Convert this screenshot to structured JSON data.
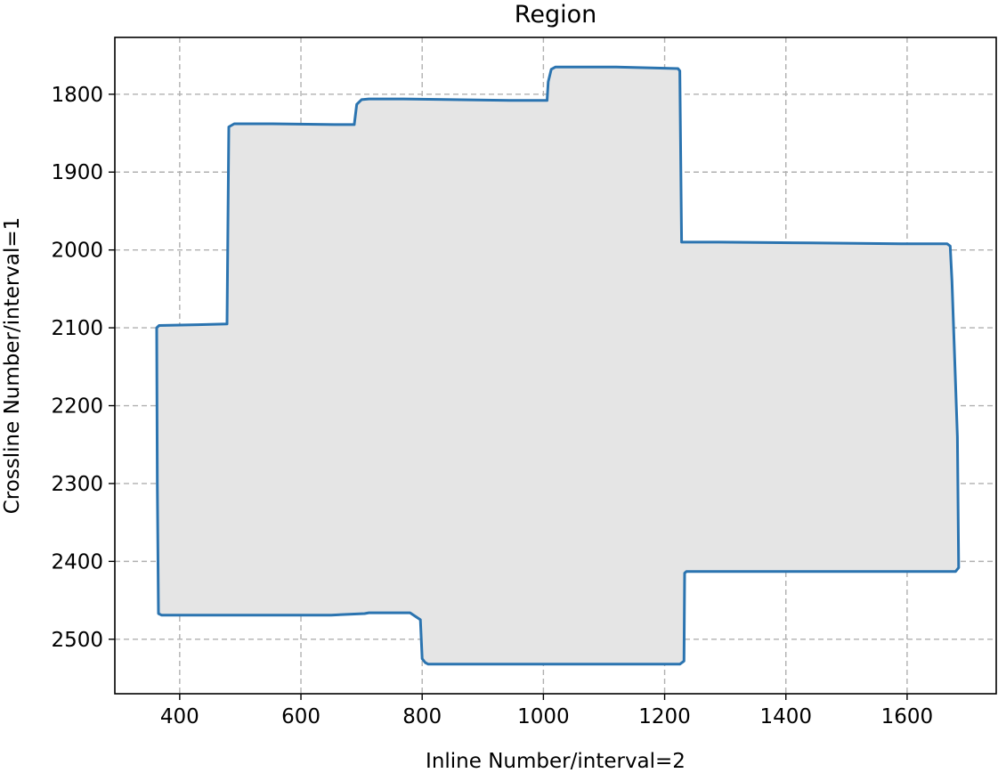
{
  "chart_data": {
    "type": "area",
    "title": "Region",
    "xlabel": "Inline Number/interval=2",
    "ylabel": "Crossline Number/interval=1",
    "xlim": [
      293,
      1747
    ],
    "ylim": [
      2570,
      1727
    ],
    "y_inverted": true,
    "grid": true,
    "grid_style": "dashed",
    "xticks": [
      400,
      600,
      800,
      1000,
      1200,
      1400,
      1600
    ],
    "yticks": [
      1800,
      1900,
      2000,
      2100,
      2200,
      2300,
      2400,
      2500
    ],
    "colors": {
      "outline": "#2b74b0",
      "fill": "#e5e5e5",
      "grid": "#b0b0b0"
    },
    "series": [
      {
        "x": [
          362,
          366,
          430,
          478,
          481,
          490,
          553,
          655,
          688,
          692,
          700,
          712,
          770,
          945,
          1006,
          1008,
          1013,
          1020,
          1120,
          1222,
          1225,
          1228,
          1290,
          1440,
          1590,
          1666,
          1671,
          1674,
          1683,
          1685,
          1680,
          1670,
          1236,
          1233,
          1232,
          1225,
          820,
          810,
          805,
          800,
          797,
          780,
          712,
          705,
          650,
          380,
          370,
          365,
          363,
          362
        ],
        "y": [
          2100,
          2097,
          2096,
          2095,
          1842,
          1838,
          1838,
          1839,
          1839,
          1813,
          1807,
          1806,
          1806,
          1808,
          1808,
          1784,
          1768,
          1765,
          1765,
          1767,
          1770,
          1990,
          1990,
          1991,
          1992,
          1992,
          1995,
          2040,
          2240,
          2408,
          2413,
          2413,
          2413,
          2415,
          2528,
          2532,
          2532,
          2532,
          2530,
          2525,
          2475,
          2466,
          2466,
          2467,
          2469,
          2469,
          2469,
          2467,
          2300,
          2100
        ]
      }
    ]
  }
}
